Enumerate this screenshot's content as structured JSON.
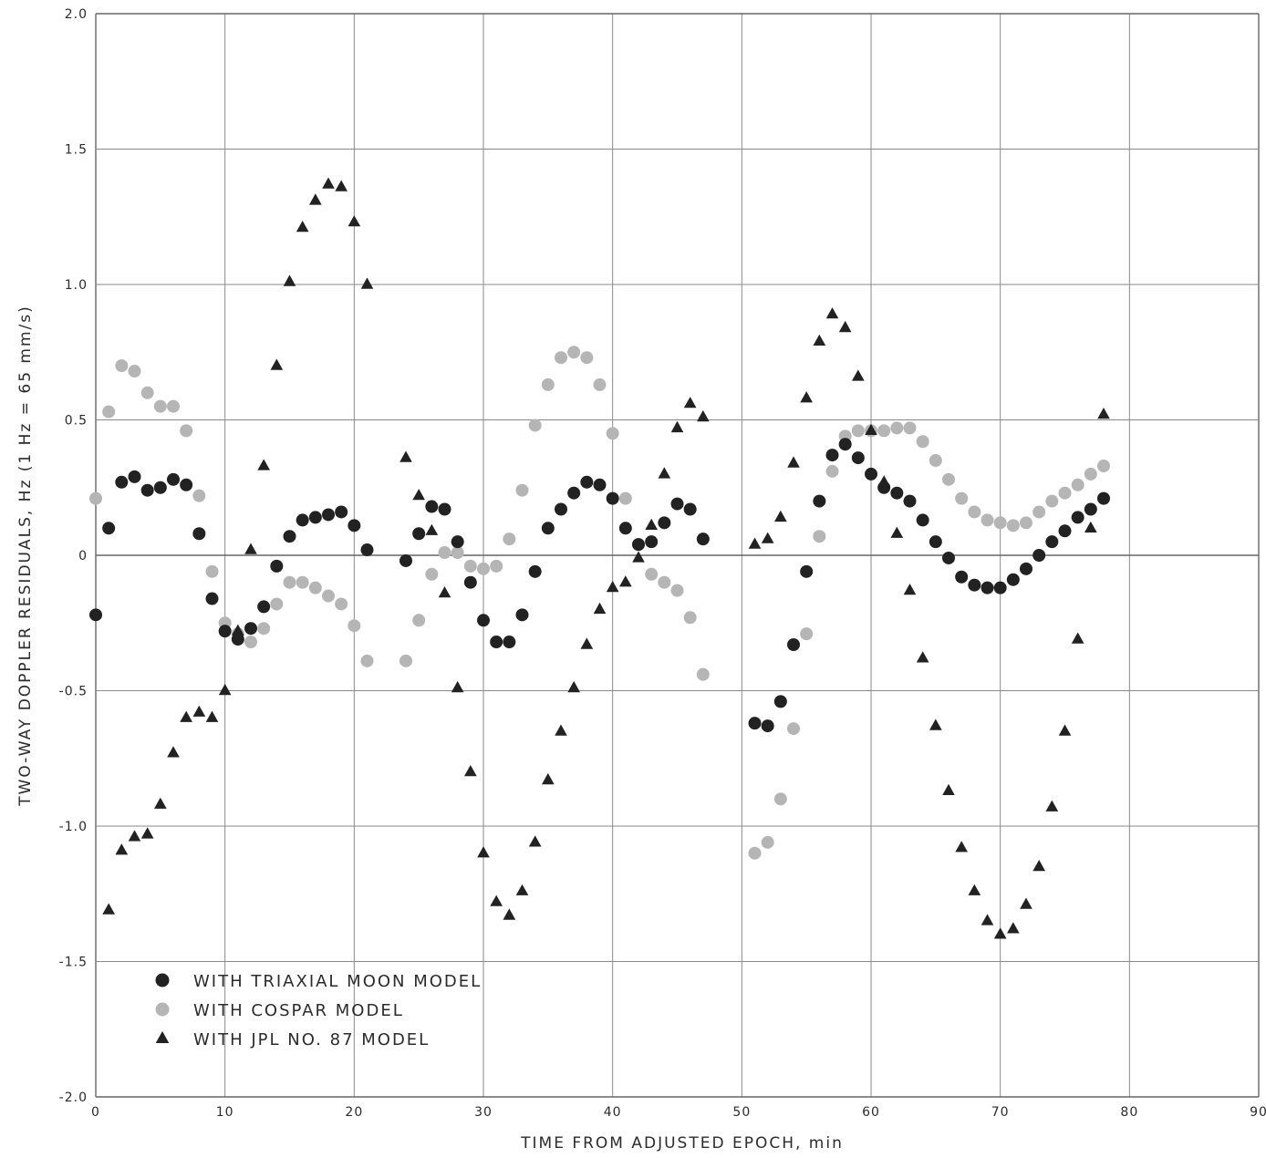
{
  "chart_data": {
    "type": "scatter",
    "title": "",
    "xlabel": "TIME FROM ADJUSTED EPOCH, min",
    "ylabel": "TWO-WAY DOPPLER RESIDUALS, Hz (1 Hz = 65 mm/s)",
    "xlim": [
      0,
      90
    ],
    "ylim": [
      -2.0,
      2.0
    ],
    "xticks": [
      0,
      10,
      20,
      30,
      40,
      50,
      60,
      70,
      80,
      90
    ],
    "yticks": [
      2.0,
      1.5,
      1.0,
      0.5,
      0,
      -0.5,
      -1.0,
      -1.5,
      -2.0
    ],
    "xtick_labels": [
      "0",
      "10",
      "20",
      "30",
      "40",
      "50",
      "60",
      "70",
      "80",
      "90"
    ],
    "ytick_labels": [
      "2.0",
      "1.5",
      "1.0",
      "0.5",
      "0",
      "-0.5",
      "-1.0",
      "-1.5",
      "-2.0"
    ],
    "grid": true,
    "legend_position": "bottom-left",
    "series": [
      {
        "name": "WITH TRIAXIAL MOON MODEL",
        "marker": "circle",
        "color": "#222222",
        "points": [
          [
            0,
            -0.22
          ],
          [
            1,
            0.1
          ],
          [
            2,
            0.27
          ],
          [
            3,
            0.29
          ],
          [
            4,
            0.24
          ],
          [
            5,
            0.25
          ],
          [
            6,
            0.28
          ],
          [
            7,
            0.26
          ],
          [
            8,
            0.08
          ],
          [
            9,
            -0.16
          ],
          [
            10,
            -0.28
          ],
          [
            11,
            -0.31
          ],
          [
            12,
            -0.27
          ],
          [
            13,
            -0.19
          ],
          [
            14,
            -0.04
          ],
          [
            15,
            0.07
          ],
          [
            16,
            0.13
          ],
          [
            17,
            0.14
          ],
          [
            18,
            0.15
          ],
          [
            19,
            0.16
          ],
          [
            20,
            0.11
          ],
          [
            21,
            0.02
          ],
          [
            24,
            -0.02
          ],
          [
            25,
            0.08
          ],
          [
            26,
            0.18
          ],
          [
            27,
            0.17
          ],
          [
            28,
            0.05
          ],
          [
            29,
            -0.1
          ],
          [
            30,
            -0.24
          ],
          [
            31,
            -0.32
          ],
          [
            32,
            -0.32
          ],
          [
            33,
            -0.22
          ],
          [
            34,
            -0.06
          ],
          [
            35,
            0.1
          ],
          [
            36,
            0.17
          ],
          [
            37,
            0.23
          ],
          [
            38,
            0.27
          ],
          [
            39,
            0.26
          ],
          [
            40,
            0.21
          ],
          [
            41,
            0.1
          ],
          [
            42,
            0.04
          ],
          [
            43,
            0.05
          ],
          [
            44,
            0.12
          ],
          [
            45,
            0.19
          ],
          [
            46,
            0.17
          ],
          [
            47,
            0.06
          ],
          [
            51,
            -0.62
          ],
          [
            52,
            -0.63
          ],
          [
            53,
            -0.54
          ],
          [
            54,
            -0.33
          ],
          [
            55,
            -0.06
          ],
          [
            56,
            0.2
          ],
          [
            57,
            0.37
          ],
          [
            58,
            0.41
          ],
          [
            59,
            0.36
          ],
          [
            60,
            0.3
          ],
          [
            61,
            0.25
          ],
          [
            62,
            0.23
          ],
          [
            63,
            0.2
          ],
          [
            64,
            0.13
          ],
          [
            65,
            0.05
          ],
          [
            66,
            -0.01
          ],
          [
            67,
            -0.08
          ],
          [
            68,
            -0.11
          ],
          [
            69,
            -0.12
          ],
          [
            70,
            -0.12
          ],
          [
            71,
            -0.09
          ],
          [
            72,
            -0.05
          ],
          [
            73,
            0.0
          ],
          [
            74,
            0.05
          ],
          [
            75,
            0.09
          ],
          [
            76,
            0.14
          ],
          [
            77,
            0.17
          ],
          [
            78,
            0.21
          ]
        ]
      },
      {
        "name": "WITH COSPAR MODEL",
        "marker": "circle",
        "color": "#b5b5b5",
        "points": [
          [
            0,
            0.21
          ],
          [
            1,
            0.53
          ],
          [
            2,
            0.7
          ],
          [
            3,
            0.68
          ],
          [
            4,
            0.6
          ],
          [
            5,
            0.55
          ],
          [
            6,
            0.55
          ],
          [
            7,
            0.46
          ],
          [
            8,
            0.22
          ],
          [
            9,
            -0.06
          ],
          [
            10,
            -0.25
          ],
          [
            11,
            -0.29
          ],
          [
            12,
            -0.32
          ],
          [
            13,
            -0.27
          ],
          [
            14,
            -0.18
          ],
          [
            15,
            -0.1
          ],
          [
            16,
            -0.1
          ],
          [
            17,
            -0.12
          ],
          [
            18,
            -0.15
          ],
          [
            19,
            -0.18
          ],
          [
            20,
            -0.26
          ],
          [
            21,
            -0.39
          ],
          [
            24,
            -0.39
          ],
          [
            25,
            -0.24
          ],
          [
            26,
            -0.07
          ],
          [
            27,
            0.01
          ],
          [
            28,
            0.01
          ],
          [
            29,
            -0.04
          ],
          [
            30,
            -0.05
          ],
          [
            31,
            -0.04
          ],
          [
            32,
            0.06
          ],
          [
            33,
            0.24
          ],
          [
            34,
            0.48
          ],
          [
            35,
            0.63
          ],
          [
            36,
            0.73
          ],
          [
            37,
            0.75
          ],
          [
            38,
            0.73
          ],
          [
            39,
            0.63
          ],
          [
            40,
            0.45
          ],
          [
            41,
            0.21
          ],
          [
            42,
            0.04
          ],
          [
            43,
            -0.07
          ],
          [
            44,
            -0.1
          ],
          [
            45,
            -0.13
          ],
          [
            46,
            -0.23
          ],
          [
            47,
            -0.44
          ],
          [
            51,
            -1.1
          ],
          [
            52,
            -1.06
          ],
          [
            53,
            -0.9
          ],
          [
            54,
            -0.64
          ],
          [
            55,
            -0.29
          ],
          [
            56,
            0.07
          ],
          [
            57,
            0.31
          ],
          [
            58,
            0.44
          ],
          [
            59,
            0.46
          ],
          [
            60,
            0.46
          ],
          [
            61,
            0.46
          ],
          [
            62,
            0.47
          ],
          [
            63,
            0.47
          ],
          [
            64,
            0.42
          ],
          [
            65,
            0.35
          ],
          [
            66,
            0.28
          ],
          [
            67,
            0.21
          ],
          [
            68,
            0.16
          ],
          [
            69,
            0.13
          ],
          [
            70,
            0.12
          ],
          [
            71,
            0.11
          ],
          [
            72,
            0.12
          ],
          [
            73,
            0.16
          ],
          [
            74,
            0.2
          ],
          [
            75,
            0.23
          ],
          [
            76,
            0.26
          ],
          [
            77,
            0.3
          ],
          [
            78,
            0.33
          ]
        ]
      },
      {
        "name": "WITH JPL NO. 87 MODEL",
        "marker": "triangle",
        "color": "#222222",
        "points": [
          [
            1,
            -1.31
          ],
          [
            2,
            -1.09
          ],
          [
            3,
            -1.04
          ],
          [
            4,
            -1.03
          ],
          [
            5,
            -0.92
          ],
          [
            6,
            -0.73
          ],
          [
            7,
            -0.6
          ],
          [
            8,
            -0.58
          ],
          [
            9,
            -0.6
          ],
          [
            10,
            -0.5
          ],
          [
            11,
            -0.28
          ],
          [
            12,
            0.02
          ],
          [
            13,
            0.33
          ],
          [
            14,
            0.7
          ],
          [
            15,
            1.01
          ],
          [
            16,
            1.21
          ],
          [
            17,
            1.31
          ],
          [
            18,
            1.37
          ],
          [
            19,
            1.36
          ],
          [
            20,
            1.23
          ],
          [
            21,
            1.0
          ],
          [
            24,
            0.36
          ],
          [
            25,
            0.22
          ],
          [
            26,
            0.09
          ],
          [
            27,
            -0.14
          ],
          [
            28,
            -0.49
          ],
          [
            29,
            -0.8
          ],
          [
            30,
            -1.1
          ],
          [
            31,
            -1.28
          ],
          [
            32,
            -1.33
          ],
          [
            33,
            -1.24
          ],
          [
            34,
            -1.06
          ],
          [
            35,
            -0.83
          ],
          [
            36,
            -0.65
          ],
          [
            37,
            -0.49
          ],
          [
            38,
            -0.33
          ],
          [
            39,
            -0.2
          ],
          [
            40,
            -0.12
          ],
          [
            41,
            -0.1
          ],
          [
            42,
            -0.01
          ],
          [
            43,
            0.11
          ],
          [
            44,
            0.3
          ],
          [
            45,
            0.47
          ],
          [
            46,
            0.56
          ],
          [
            47,
            0.51
          ],
          [
            51,
            0.04
          ],
          [
            52,
            0.06
          ],
          [
            53,
            0.14
          ],
          [
            54,
            0.34
          ],
          [
            55,
            0.58
          ],
          [
            56,
            0.79
          ],
          [
            57,
            0.89
          ],
          [
            58,
            0.84
          ],
          [
            59,
            0.66
          ],
          [
            60,
            0.46
          ],
          [
            61,
            0.27
          ],
          [
            62,
            0.08
          ],
          [
            63,
            -0.13
          ],
          [
            64,
            -0.38
          ],
          [
            65,
            -0.63
          ],
          [
            66,
            -0.87
          ],
          [
            67,
            -1.08
          ],
          [
            68,
            -1.24
          ],
          [
            69,
            -1.35
          ],
          [
            70,
            -1.4
          ],
          [
            71,
            -1.38
          ],
          [
            72,
            -1.29
          ],
          [
            73,
            -1.15
          ],
          [
            74,
            -0.93
          ],
          [
            75,
            -0.65
          ],
          [
            76,
            -0.31
          ],
          [
            77,
            0.1
          ],
          [
            78,
            0.52
          ]
        ]
      }
    ]
  }
}
